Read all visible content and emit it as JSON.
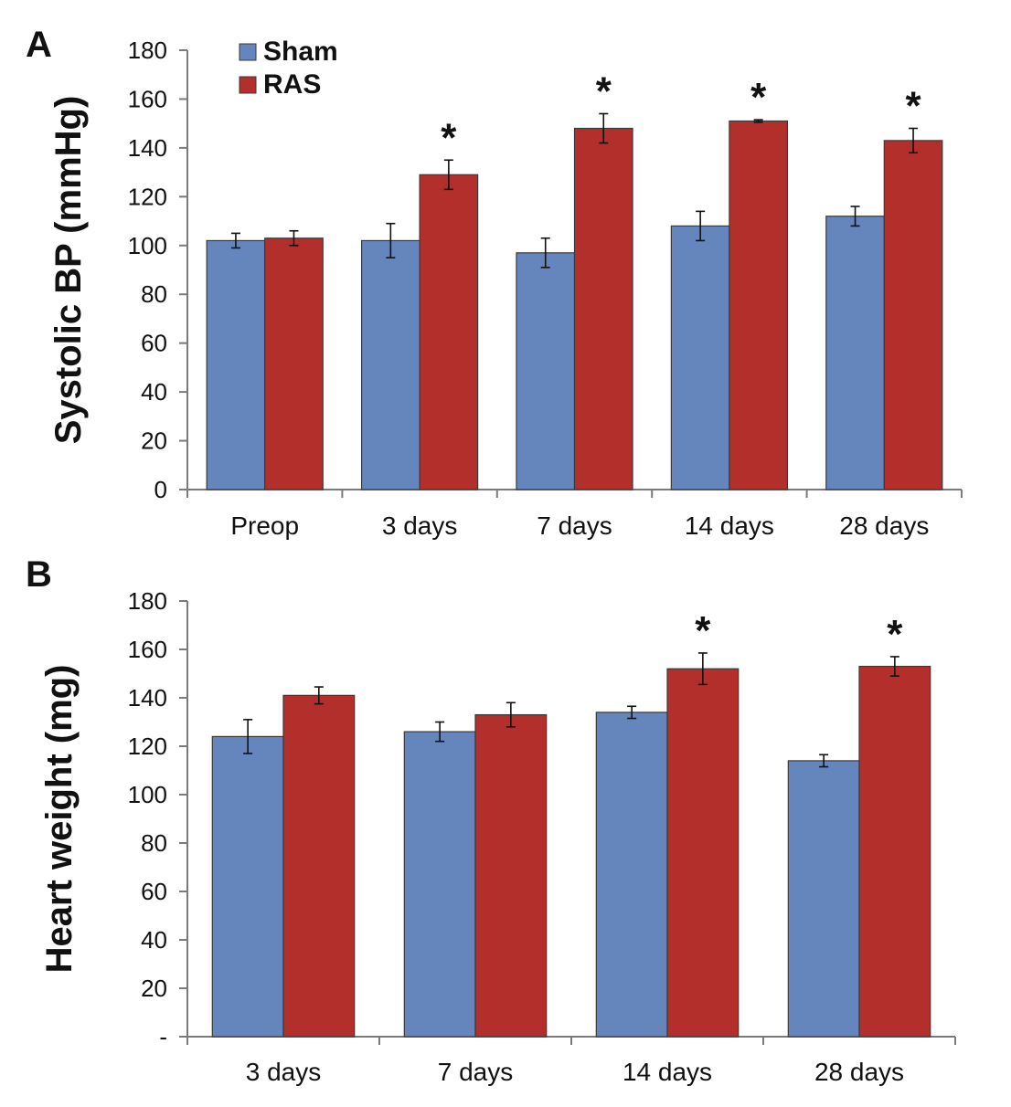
{
  "colors": {
    "sham": "#6585bd",
    "ras": "#b22f2b",
    "axis": "#7a7a7a",
    "bar_edge": "#3a3a3a"
  },
  "chart_data": [
    {
      "panel": "A",
      "type": "bar",
      "ylabel": "Systolic BP (mmHg)",
      "xlabel": "",
      "ylim": [
        0,
        180
      ],
      "yticks": [
        0,
        20,
        40,
        60,
        80,
        100,
        120,
        140,
        160,
        180
      ],
      "ytick_labels": [
        "0",
        "20",
        "40",
        "60",
        "80",
        "100",
        "120",
        "140",
        "160",
        "180"
      ],
      "categories": [
        "Preop",
        "3 days",
        "7 days",
        "14 days",
        "28 days"
      ],
      "legend": {
        "position": "top-left",
        "entries": [
          "Sham",
          "RAS"
        ]
      },
      "series": [
        {
          "name": "Sham",
          "values": [
            102,
            102,
            97,
            108,
            112
          ],
          "errors": [
            3,
            7,
            6,
            6,
            4
          ]
        },
        {
          "name": "RAS",
          "values": [
            103,
            129,
            148,
            151,
            143
          ],
          "errors": [
            3,
            6,
            6,
            0.5,
            5
          ]
        }
      ],
      "significance": [
        {
          "category": "3 days",
          "series": "RAS",
          "label": "*"
        },
        {
          "category": "7 days",
          "series": "RAS",
          "label": "*"
        },
        {
          "category": "14 days",
          "series": "RAS",
          "label": "*"
        },
        {
          "category": "28 days",
          "series": "RAS",
          "label": "*"
        }
      ]
    },
    {
      "panel": "B",
      "type": "bar",
      "ylabel": "Heart weight (mg)",
      "xlabel": "",
      "ylim": [
        0,
        180
      ],
      "yticks": [
        0,
        20,
        40,
        60,
        80,
        100,
        120,
        140,
        160,
        180
      ],
      "ytick_labels": [
        "-",
        "20",
        "40",
        "60",
        "80",
        "100",
        "120",
        "140",
        "160",
        "180"
      ],
      "categories": [
        "3 days",
        "7 days",
        "14 days",
        "28 days"
      ],
      "series": [
        {
          "name": "Sham",
          "values": [
            124,
            126,
            134,
            114
          ],
          "errors": [
            7,
            4,
            2.5,
            2.5
          ]
        },
        {
          "name": "RAS",
          "values": [
            141,
            133,
            152,
            153
          ],
          "errors": [
            3.5,
            5,
            6.5,
            4
          ]
        }
      ],
      "significance": [
        {
          "category": "14 days",
          "series": "RAS",
          "label": "*"
        },
        {
          "category": "28 days",
          "series": "RAS",
          "label": "*"
        }
      ]
    }
  ]
}
